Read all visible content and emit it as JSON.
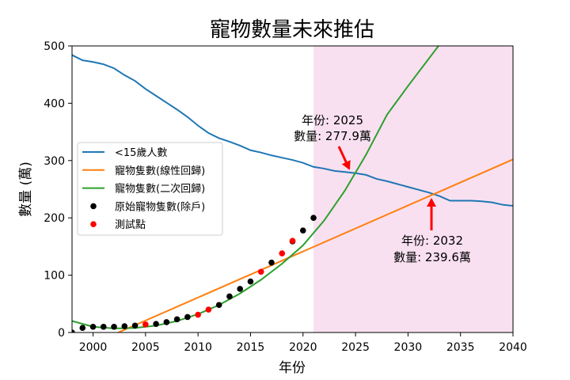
{
  "chart_data": {
    "type": "line",
    "title": "寵物數量未來推估",
    "xlabel": "年份",
    "ylabel": "數量 (萬)",
    "xlim": [
      1998,
      2040
    ],
    "ylim": [
      0,
      500
    ],
    "xticks": [
      2000,
      2005,
      2010,
      2015,
      2020,
      2025,
      2030,
      2035,
      2040
    ],
    "yticks": [
      0,
      100,
      200,
      300,
      400,
      500
    ],
    "shaded_region": {
      "x": [
        2021,
        2040
      ],
      "color": "#f8e0f0"
    },
    "legend_position": "center-left",
    "series": [
      {
        "name": "<15歲人數",
        "kind": "line",
        "color": "#1f77b4",
        "x": [
          1998,
          1999,
          2000,
          2001,
          2002,
          2003,
          2004,
          2005,
          2006,
          2007,
          2008,
          2009,
          2010,
          2011,
          2012,
          2013,
          2014,
          2015,
          2016,
          2017,
          2018,
          2019,
          2020,
          2021,
          2022,
          2023,
          2024,
          2025,
          2026,
          2027,
          2028,
          2029,
          2030,
          2031,
          2032,
          2033,
          2034,
          2035,
          2036,
          2037,
          2038,
          2039,
          2040
        ],
        "y": [
          484,
          475,
          472,
          468,
          461,
          449,
          439,
          425,
          413,
          401,
          389,
          376,
          361,
          348,
          339,
          333,
          326,
          318,
          314,
          309,
          305,
          301,
          296,
          289,
          286,
          282,
          280,
          278,
          275,
          268,
          264,
          259,
          254,
          249,
          244,
          238,
          230,
          230,
          230,
          229,
          227,
          223,
          221
        ]
      },
      {
        "name": "寵物隻數(線性回歸)",
        "kind": "line",
        "color": "#ff7f0e",
        "x": [
          2002.4,
          2040
        ],
        "y": [
          0,
          302
        ]
      },
      {
        "name": "寵物隻數(二次回歸)",
        "kind": "line",
        "color": "#2ca02c",
        "x": [
          1998,
          2000,
          2002,
          2004,
          2006,
          2008,
          2010,
          2012,
          2014,
          2016,
          2018,
          2020,
          2022,
          2024,
          2026,
          2028,
          2030,
          2032.9
        ],
        "y": [
          20,
          10,
          7,
          8,
          12,
          20,
          32,
          48,
          68,
          92,
          120,
          152,
          195,
          248,
          310,
          380,
          430,
          500
        ]
      },
      {
        "name": "原始寵物隻數(除戶)",
        "kind": "scatter",
        "color": "#000000",
        "x": [
          1998,
          1999,
          2000,
          2001,
          2002,
          2003,
          2004,
          2006,
          2007,
          2008,
          2009,
          2012,
          2013,
          2014,
          2015,
          2017,
          2019,
          2020,
          2021
        ],
        "y": [
          0,
          8,
          10,
          10,
          10,
          11,
          12,
          15,
          18,
          23,
          27,
          48,
          63,
          76,
          89,
          122,
          159,
          178,
          200
        ]
      },
      {
        "name": "測試點",
        "kind": "scatter",
        "color": "#ff0000",
        "x": [
          2005,
          2010,
          2011,
          2016,
          2018,
          2019
        ],
        "y": [
          14,
          31,
          40,
          106,
          138,
          160
        ]
      }
    ],
    "annotations": [
      {
        "lines": [
          "年份: 2025",
          "數量: 277.9萬"
        ],
        "point": [
          2024.5,
          278
        ],
        "arrow_color": "#ff0000"
      },
      {
        "lines": [
          "年份: 2032",
          "數量: 239.6萬"
        ],
        "point": [
          2032.2,
          240
        ],
        "arrow_color": "#ff0000"
      }
    ]
  }
}
